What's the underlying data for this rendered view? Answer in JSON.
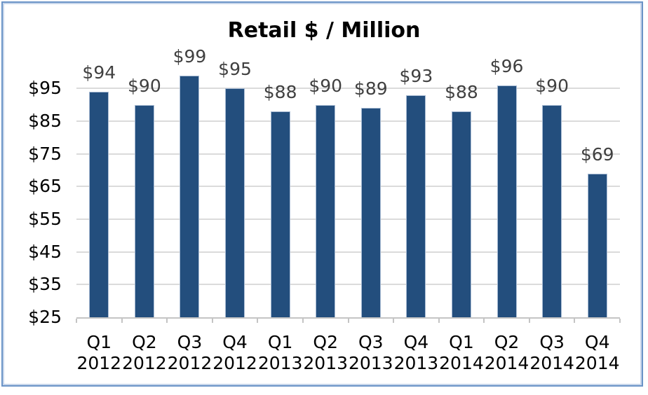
{
  "chart_data": {
    "type": "bar",
    "title": "Retail $ / Million",
    "categories": [
      "Q1 2012",
      "Q2 2012",
      "Q3 2012",
      "Q4 2012",
      "Q1 2013",
      "Q2 2013",
      "Q3 2013",
      "Q4 2013",
      "Q1 2014",
      "Q2 2014",
      "Q3 2014",
      "Q4 2014"
    ],
    "values": [
      94,
      90,
      99,
      95,
      88,
      90,
      89,
      93,
      88,
      96,
      90,
      69
    ],
    "data_labels": [
      "$94",
      "$90",
      "$99",
      "$95",
      "$88",
      "$90",
      "$89",
      "$93",
      "$88",
      "$96",
      "$90",
      "$69"
    ],
    "value_prefix": "$",
    "xlabel": "",
    "ylabel": "",
    "ylim": [
      25,
      100
    ],
    "y_major_unit": 10,
    "y_tick_values": [
      25,
      35,
      45,
      55,
      65,
      75,
      85,
      95
    ],
    "y_tick_labels": [
      "$25",
      "$35",
      "$45",
      "$55",
      "$65",
      "$75",
      "$85",
      "$95"
    ],
    "grid": true,
    "legend": "none",
    "style": {
      "bar_color": "#234E7D",
      "bar_border_color": "#A9BCD4",
      "gridline_color": "#DBDBDB",
      "axis_color": "#C4C4C4",
      "data_label_color": "#404040",
      "tick_label_color": "#000000",
      "title_color": "#000000",
      "frame_border_outer": "#6B94C7",
      "frame_border_inner": "#C8D6EB",
      "background": "#FFFFFF"
    }
  }
}
